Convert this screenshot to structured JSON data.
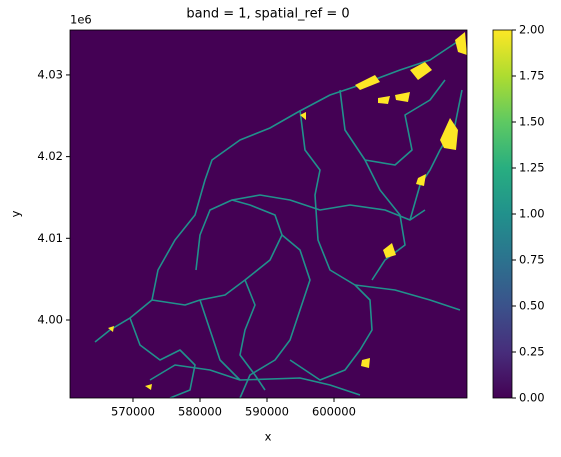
{
  "chart_data": {
    "type": "raster",
    "title": "band = 1, spatial_ref = 0",
    "x_label": "x",
    "y_label": "y",
    "y_offset_label": "1e6",
    "xlim": [
      560600,
      619850
    ],
    "xticks": [
      570000,
      580000,
      590000,
      600000
    ],
    "ylim": [
      3990450,
      4035500
    ],
    "yticks": [
      {
        "value": 4000000,
        "label": "4.00"
      },
      {
        "value": 4010000,
        "label": "4.01"
      },
      {
        "value": 4020000,
        "label": "4.02"
      },
      {
        "value": 4030000,
        "label": "4.03"
      }
    ],
    "colorbar": {
      "lim": [
        0,
        2
      ],
      "ticks": [
        {
          "value": 0,
          "label": "0.00"
        },
        {
          "value": 0.25,
          "label": "0.25"
        },
        {
          "value": 0.5,
          "label": "0.50"
        },
        {
          "value": 0.75,
          "label": "0.75"
        },
        {
          "value": 1,
          "label": "1.00"
        },
        {
          "value": 1.25,
          "label": "1.25"
        },
        {
          "value": 1.5,
          "label": "1.50"
        },
        {
          "value": 1.75,
          "label": "1.75"
        },
        {
          "value": 2,
          "label": "2.00"
        }
      ]
    }
  }
}
